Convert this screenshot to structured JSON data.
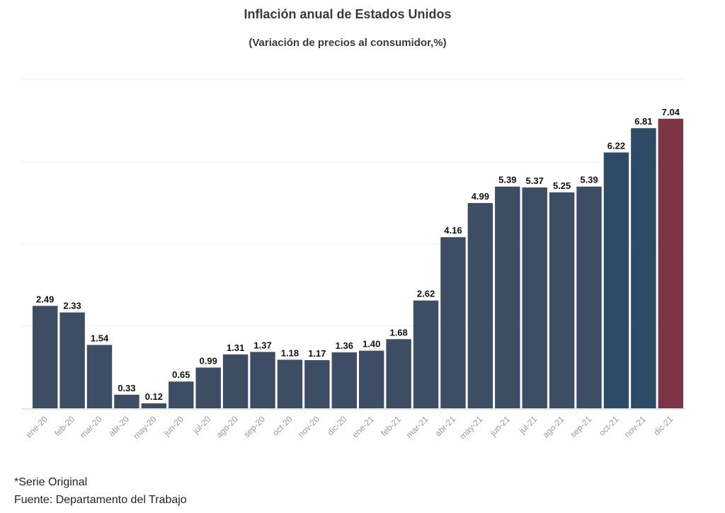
{
  "chart_data": {
    "type": "bar",
    "title": "Inflación anual de Estados Unidos",
    "subtitle": "(Variación de precios al consumidor,%)",
    "categories": [
      "ene-20",
      "feb-20",
      "mar-20",
      "abr-20",
      "may-20",
      "jun-20",
      "jul-20",
      "ago-20",
      "sep-20",
      "oct-20",
      "nov-20",
      "dic-20",
      "ene-21",
      "feb-21",
      "mar-21",
      "abr-21",
      "may-21",
      "jun-21",
      "jul-21",
      "ago-21",
      "sep-21",
      "oct-21",
      "nov-21",
      "dic-21"
    ],
    "values": [
      2.49,
      2.33,
      1.54,
      0.33,
      0.12,
      0.65,
      0.99,
      1.31,
      1.37,
      1.18,
      1.17,
      1.36,
      1.4,
      1.68,
      2.62,
      4.16,
      4.99,
      5.39,
      5.37,
      5.25,
      5.39,
      6.22,
      6.81,
      7.04
    ],
    "value_labels": [
      "2.49",
      "2.33",
      "1.54",
      "0.33",
      "0.12",
      "0.65",
      "0.99",
      "1.31",
      "1.37",
      "1.18",
      "1.17",
      "1.36",
      "1.40",
      "1.68",
      "2.62",
      "4.16",
      "4.99",
      "5.39",
      "5.37",
      "5.25",
      "5.39",
      "6.22",
      "6.81",
      "7.04"
    ],
    "bar_colors": [
      "#3d4d63",
      "#3d4d63",
      "#3d4d63",
      "#3d4d63",
      "#3d4d63",
      "#3d4d63",
      "#3d4d63",
      "#3d4d63",
      "#3d4d63",
      "#3d4d63",
      "#3d4d63",
      "#3d4d63",
      "#3d4d63",
      "#3d4d63",
      "#3d4d63",
      "#3d4d63",
      "#3d4d63",
      "#3d4d63",
      "#3d4d63",
      "#3d4d63",
      "#3d4d63",
      "#2d4a66",
      "#2d4a66",
      "#7b3545"
    ],
    "xlabel": "",
    "ylabel": "",
    "ylim": [
      0,
      8
    ],
    "grid": true,
    "legend": "none"
  },
  "footnotes": {
    "serie": "*Serie Original",
    "source": "Fuente: Departamento del Trabajo"
  }
}
